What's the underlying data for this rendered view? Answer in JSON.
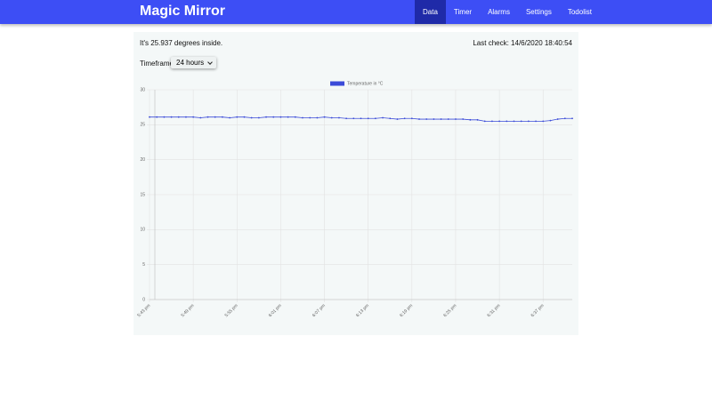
{
  "header": {
    "title": "Magic Mirror",
    "nav": [
      "Data",
      "Timer",
      "Alarms",
      "Settings",
      "Todolist"
    ],
    "active_index": 0
  },
  "info": {
    "current": "It's 25.937 degrees inside.",
    "last_check": "Last check: 14/6/2020 18:40:54",
    "timeframe_label": "Timeframe:",
    "timeframe_value": "24 hours"
  },
  "chart_data": {
    "type": "line",
    "categories": [
      "5:43 pm",
      null,
      null,
      null,
      null,
      null,
      "5:49 pm",
      null,
      null,
      null,
      null,
      null,
      "5:55 pm",
      null,
      null,
      null,
      null,
      null,
      "6:01 pm",
      null,
      null,
      null,
      null,
      null,
      "6:07 pm",
      null,
      null,
      null,
      null,
      null,
      "6:13 pm",
      null,
      null,
      null,
      null,
      null,
      "6:19 pm",
      null,
      null,
      null,
      null,
      null,
      "6:25 pm",
      null,
      null,
      null,
      null,
      null,
      "6:31 pm",
      null,
      null,
      null,
      null,
      null,
      "6:37 pm",
      null,
      null,
      null,
      null
    ],
    "series": [
      {
        "name": "Temperature in °C",
        "color": "#3b4bd8",
        "values": [
          26.1,
          26.1,
          26.1,
          26.1,
          26.1,
          26.1,
          26.1,
          26.0,
          26.1,
          26.1,
          26.1,
          26.0,
          26.1,
          26.1,
          26.0,
          26.0,
          26.1,
          26.1,
          26.1,
          26.1,
          26.1,
          26.0,
          26.0,
          26.0,
          26.1,
          26.0,
          26.0,
          25.9,
          25.9,
          25.9,
          25.9,
          25.9,
          26.0,
          25.9,
          25.8,
          25.9,
          25.9,
          25.8,
          25.8,
          25.8,
          25.8,
          25.8,
          25.8,
          25.8,
          25.7,
          25.7,
          25.5,
          25.5,
          25.5,
          25.5,
          25.5,
          25.5,
          25.5,
          25.5,
          25.5,
          25.6,
          25.8,
          25.9,
          25.9
        ]
      }
    ],
    "ylim": [
      0,
      30
    ],
    "yticks": [
      0,
      5,
      10,
      15,
      20,
      25,
      30
    ],
    "grid": true,
    "legend": "top"
  }
}
